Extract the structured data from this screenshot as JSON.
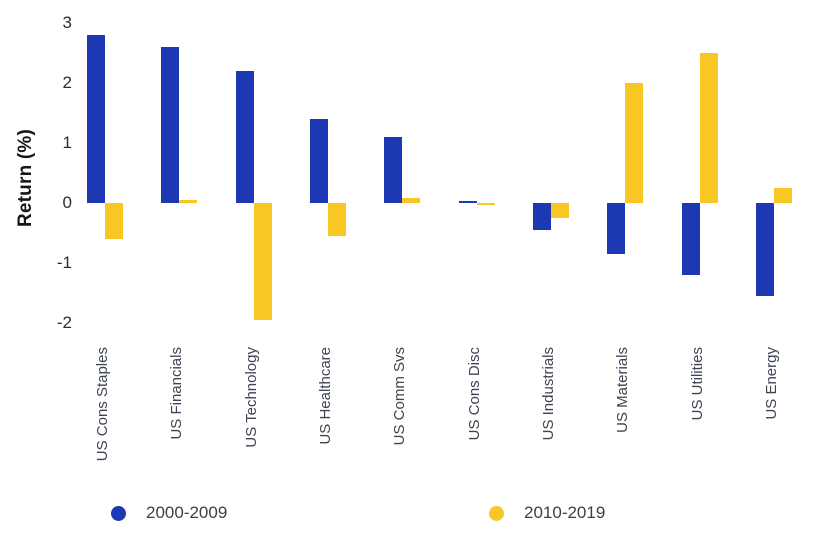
{
  "chart_data": {
    "type": "bar",
    "title": "",
    "xlabel": "",
    "ylabel": "Return (%)",
    "categories": [
      "US Cons Staples",
      "US Financials",
      "US Technology",
      "US Healthcare",
      "US Comm Svs",
      "US Cons Disc",
      "US Industrials",
      "US Materials",
      "US Utilities",
      "US Energy"
    ],
    "series": [
      {
        "name": "2000-2009",
        "color": "#1c38b2",
        "values": [
          2.8,
          2.6,
          2.2,
          1.4,
          1.1,
          0.02,
          -0.45,
          -0.85,
          -1.2,
          -1.55
        ]
      },
      {
        "name": "2010-2019",
        "color": "#f8c724",
        "values": [
          -0.6,
          0.05,
          -1.95,
          -0.55,
          0.08,
          -0.04,
          -0.25,
          2.0,
          2.5,
          0.25
        ]
      }
    ],
    "y_ticks": [
      3,
      2,
      1,
      0,
      -1,
      -2
    ],
    "ylim": [
      -2.4,
      3.2
    ],
    "grid": false,
    "axis_lines": false,
    "legend_position": "bottom",
    "x_tick_rotation_degrees": 90
  },
  "colors": {
    "background": "#ffffff",
    "tick_label": "#2e2e2e",
    "axis_title": "#161616",
    "x_label": "#3e4552",
    "legend_text": "#3f3f3f"
  }
}
